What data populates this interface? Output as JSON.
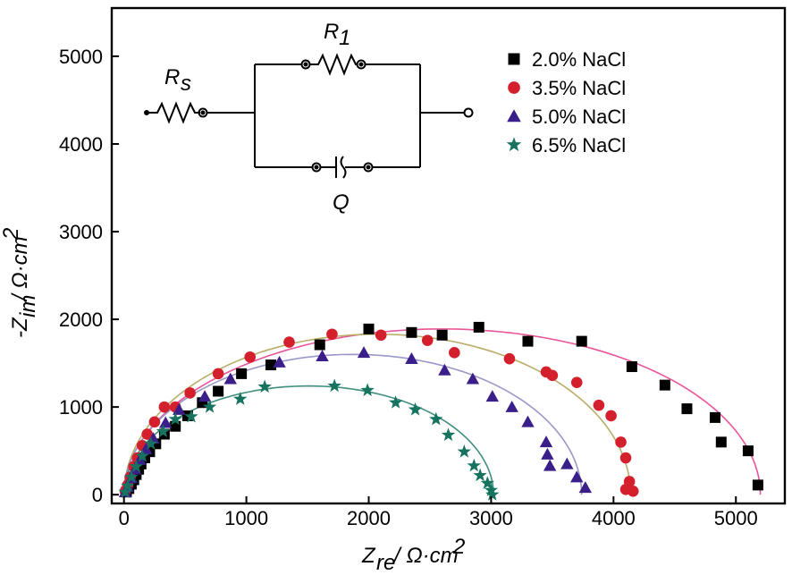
{
  "chart_data": {
    "type": "scatter",
    "title": "",
    "xlabel": "Z_re / Ω·cm²",
    "ylabel": "-Z_im / Ω·cm²",
    "xlim": [
      -100,
      5400
    ],
    "ylim": [
      -100,
      5550
    ],
    "x_ticks": [
      0,
      1000,
      2000,
      3000,
      4000,
      5000
    ],
    "y_ticks": [
      0,
      1000,
      2000,
      3000,
      4000,
      5000
    ],
    "grid": false,
    "legend_position": "top-right",
    "series": [
      {
        "name": "2.0% NaCl",
        "color": "#000000",
        "marker": "square",
        "fit_color": "#e8559a",
        "fit": {
          "center": 2600,
          "radius": 2600,
          "height": 1890
        },
        "points": [
          [
            20,
            30
          ],
          [
            40,
            70
          ],
          [
            60,
            120
          ],
          [
            80,
            170
          ],
          [
            100,
            230
          ],
          [
            120,
            290
          ],
          [
            140,
            350
          ],
          [
            170,
            420
          ],
          [
            210,
            490
          ],
          [
            260,
            580
          ],
          [
            330,
            690
          ],
          [
            420,
            780
          ],
          [
            520,
            900
          ],
          [
            640,
            1050
          ],
          [
            770,
            1180
          ],
          [
            960,
            1380
          ],
          [
            1200,
            1480
          ],
          [
            1600,
            1710
          ],
          [
            2000,
            1890
          ],
          [
            2350,
            1850
          ],
          [
            2600,
            1820
          ],
          [
            2900,
            1910
          ],
          [
            3300,
            1750
          ],
          [
            3740,
            1750
          ],
          [
            4150,
            1460
          ],
          [
            4420,
            1250
          ],
          [
            4600,
            980
          ],
          [
            4830,
            880
          ],
          [
            4880,
            600
          ],
          [
            5100,
            500
          ],
          [
            5180,
            110
          ]
        ]
      },
      {
        "name": "3.5% NaCl",
        "color": "#d4202c",
        "marker": "circle",
        "fit_color": "#b9ad6a",
        "fit": {
          "center": 2070,
          "radius": 2070,
          "height": 1830
        },
        "points": [
          [
            10,
            40
          ],
          [
            30,
            110
          ],
          [
            50,
            200
          ],
          [
            80,
            320
          ],
          [
            110,
            420
          ],
          [
            150,
            560
          ],
          [
            190,
            690
          ],
          [
            250,
            830
          ],
          [
            330,
            1000
          ],
          [
            420,
            1000
          ],
          [
            540,
            1160
          ],
          [
            770,
            1380
          ],
          [
            1030,
            1570
          ],
          [
            1350,
            1740
          ],
          [
            1700,
            1830
          ],
          [
            2100,
            1820
          ],
          [
            2480,
            1760
          ],
          [
            2700,
            1620
          ],
          [
            3150,
            1550
          ],
          [
            3450,
            1400
          ],
          [
            3500,
            1360
          ],
          [
            3700,
            1280
          ],
          [
            3880,
            1020
          ],
          [
            3980,
            900
          ],
          [
            4060,
            600
          ],
          [
            4100,
            420
          ],
          [
            4130,
            150
          ],
          [
            4100,
            60
          ],
          [
            4160,
            40
          ]
        ]
      },
      {
        "name": "5.0% NaCl",
        "color": "#3a1e8a",
        "marker": "triangle",
        "fit_color": "#9a98c8",
        "fit": {
          "center": 1870,
          "radius": 1870,
          "height": 1600
        },
        "points": [
          [
            10,
            30
          ],
          [
            30,
            90
          ],
          [
            60,
            190
          ],
          [
            90,
            290
          ],
          [
            130,
            400
          ],
          [
            180,
            520
          ],
          [
            240,
            640
          ],
          [
            340,
            820
          ],
          [
            450,
            970
          ],
          [
            660,
            1120
          ],
          [
            870,
            1320
          ],
          [
            1270,
            1510
          ],
          [
            1620,
            1580
          ],
          [
            1960,
            1620
          ],
          [
            2350,
            1550
          ],
          [
            2620,
            1420
          ],
          [
            2850,
            1320
          ],
          [
            3010,
            1120
          ],
          [
            3170,
            1000
          ],
          [
            3300,
            830
          ],
          [
            3450,
            600
          ],
          [
            3460,
            460
          ],
          [
            3480,
            330
          ],
          [
            3620,
            350
          ],
          [
            3700,
            200
          ],
          [
            3770,
            80
          ]
        ]
      },
      {
        "name": "6.5% NaCl",
        "color": "#16735f",
        "marker": "star",
        "fit_color": "#3f8e80",
        "fit": {
          "center": 1510,
          "radius": 1510,
          "height": 1240
        },
        "points": [
          [
            10,
            30
          ],
          [
            30,
            100
          ],
          [
            60,
            200
          ],
          [
            100,
            320
          ],
          [
            150,
            440
          ],
          [
            220,
            580
          ],
          [
            320,
            720
          ],
          [
            420,
            860
          ],
          [
            550,
            890
          ],
          [
            700,
            1000
          ],
          [
            950,
            1090
          ],
          [
            1150,
            1230
          ],
          [
            1720,
            1240
          ],
          [
            1990,
            1190
          ],
          [
            2220,
            1050
          ],
          [
            2380,
            970
          ],
          [
            2550,
            860
          ],
          [
            2650,
            680
          ],
          [
            2780,
            490
          ],
          [
            2860,
            330
          ],
          [
            2910,
            220
          ],
          [
            2970,
            130
          ],
          [
            3000,
            50
          ],
          [
            3010,
            0
          ]
        ]
      }
    ],
    "inset_circuit": {
      "labels": [
        "R1",
        "Rs",
        "Q"
      ]
    }
  }
}
